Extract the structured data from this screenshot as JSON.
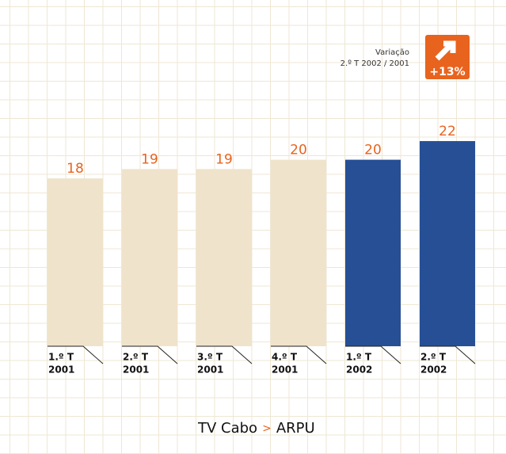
{
  "chart_data": {
    "type": "bar",
    "categories": [
      [
        "1.º T",
        "2001"
      ],
      [
        "2.º T",
        "2001"
      ],
      [
        "3.º T",
        "2001"
      ],
      [
        "4.º T",
        "2001"
      ],
      [
        "1.º T",
        "2002"
      ],
      [
        "2.º T",
        "2002"
      ]
    ],
    "values": [
      18,
      19,
      19,
      20,
      20,
      22
    ],
    "colors": [
      "#efe3cb",
      "#efe3cb",
      "#efe3cb",
      "#efe3cb",
      "#264f96",
      "#264f96"
    ],
    "label_color": "#e8631e",
    "badge": {
      "caption": [
        "Variação",
        "2.º T 2002 / 2001"
      ],
      "value": "+13%",
      "color": "#e8631e"
    },
    "title": {
      "left": "TV Cabo",
      "separator": ">",
      "right": "ARPU"
    }
  }
}
